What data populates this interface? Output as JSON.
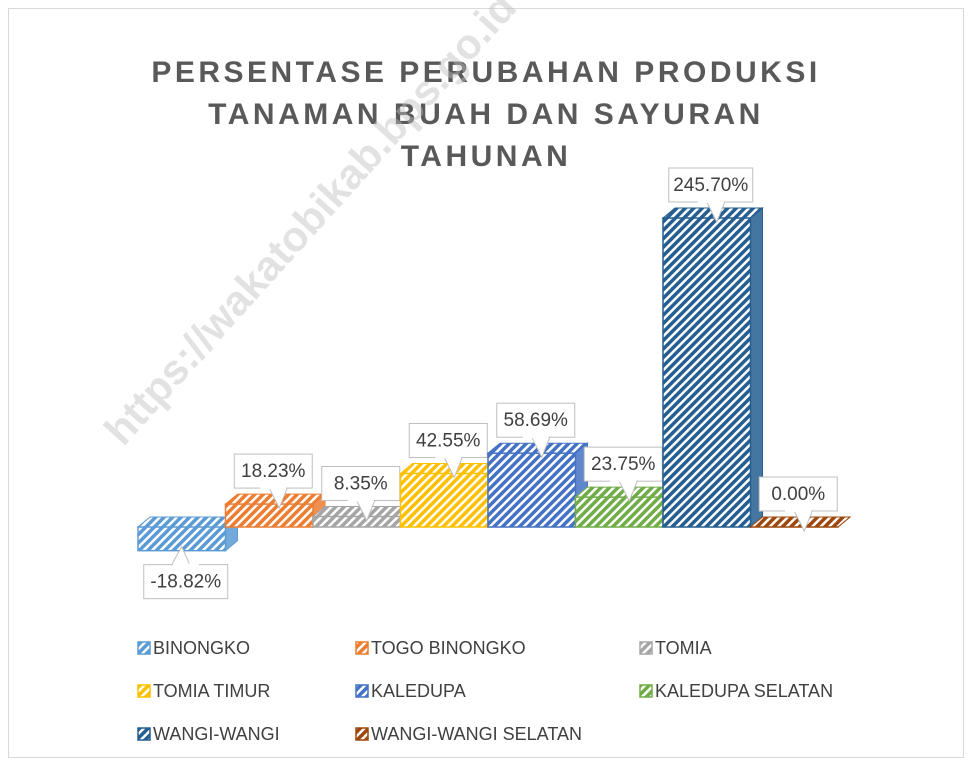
{
  "chart_data": {
    "type": "bar",
    "title": "PERSENTASE PERUBAHAN PRODUKSI TANAMAN BUAH DAN SAYURAN TAHUNAN",
    "watermark": "https://wakatobikab.bps.go.id",
    "series": [
      {
        "name": "BINONGKO",
        "color": "#5b9bd5",
        "values": [
          -18.82
        ],
        "value_labels": [
          "-18.82%"
        ]
      },
      {
        "name": "TOGO BINONGKO",
        "color": "#ed7d31",
        "values": [
          18.23
        ],
        "value_labels": [
          "18.23%"
        ]
      },
      {
        "name": "TOMIA",
        "color": "#a5a5a5",
        "values": [
          8.35
        ],
        "value_labels": [
          "8.35%"
        ]
      },
      {
        "name": "TOMIA TIMUR",
        "color": "#ffc000",
        "values": [
          42.55
        ],
        "value_labels": [
          "42.55%"
        ]
      },
      {
        "name": "KALEDUPA",
        "color": "#4472c4",
        "values": [
          58.69
        ],
        "value_labels": [
          "58.69%"
        ]
      },
      {
        "name": "KALEDUPA SELATAN",
        "color": "#70ad47",
        "values": [
          23.75
        ],
        "value_labels": [
          "23.75%"
        ]
      },
      {
        "name": "WANGI-WANGI",
        "color": "#255e91",
        "values": [
          245.7
        ],
        "value_labels": [
          "245.70%"
        ]
      },
      {
        "name": "WANGI-WANGI SELATAN",
        "color": "#9e480e",
        "values": [
          0.0
        ],
        "value_labels": [
          "0.00%"
        ]
      }
    ],
    "legend": "bottom"
  }
}
